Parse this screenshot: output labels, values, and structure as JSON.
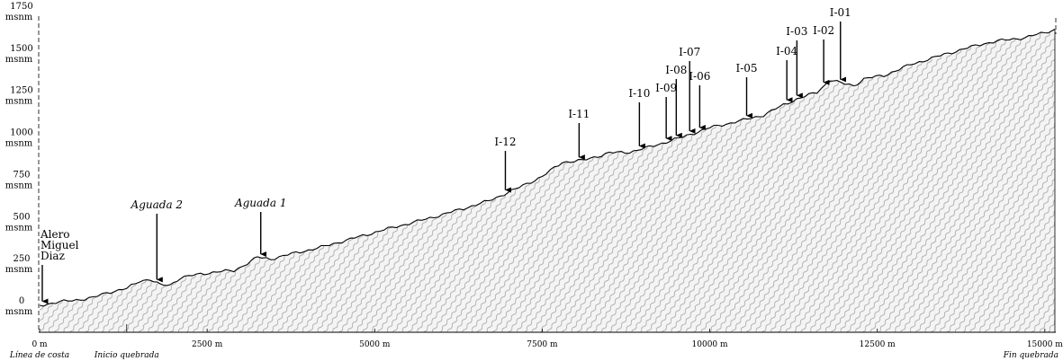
{
  "y_axis": {
    "unit": "msnm",
    "ticks": [
      {
        "value": 1750,
        "label": "1750"
      },
      {
        "value": 1500,
        "label": "1500"
      },
      {
        "value": 1250,
        "label": "1250"
      },
      {
        "value": 1000,
        "label": "1000"
      },
      {
        "value": 750,
        "label": "750"
      },
      {
        "value": 500,
        "label": "500"
      },
      {
        "value": 250,
        "label": "250"
      },
      {
        "value": 0,
        "label": "0"
      }
    ]
  },
  "x_axis": {
    "ticks": [
      {
        "value": 0,
        "label": "0 m"
      },
      {
        "value": 2500,
        "label": "2500 m"
      },
      {
        "value": 5000,
        "label": "5000 m"
      },
      {
        "value": 7500,
        "label": "7500 m"
      },
      {
        "value": 10000,
        "label": "10000 m"
      },
      {
        "value": 12500,
        "label": "12500 m"
      },
      {
        "value": 15000,
        "label": "15000 m"
      }
    ],
    "markers": [
      {
        "value": 0,
        "label": "Línea de costa"
      },
      {
        "value": 1300,
        "label": "Inicio quebrada"
      },
      {
        "value": 15150,
        "label": "Fin  quebrada"
      }
    ]
  },
  "profile": [
    [
      0,
      0
    ],
    [
      300,
      20
    ],
    [
      800,
      45
    ],
    [
      1000,
      75
    ],
    [
      1300,
      100
    ],
    [
      1500,
      145
    ],
    [
      1650,
      155
    ],
    [
      1800,
      120
    ],
    [
      1950,
      120
    ],
    [
      2100,
      165
    ],
    [
      2400,
      185
    ],
    [
      2650,
      200
    ],
    [
      2900,
      205
    ],
    [
      3100,
      250
    ],
    [
      3250,
      285
    ],
    [
      3450,
      275
    ],
    [
      3700,
      300
    ],
    [
      4200,
      345
    ],
    [
      4700,
      400
    ],
    [
      5200,
      455
    ],
    [
      5700,
      505
    ],
    [
      6200,
      560
    ],
    [
      6700,
      620
    ],
    [
      7100,
      690
    ],
    [
      7500,
      765
    ],
    [
      7800,
      850
    ],
    [
      8100,
      860
    ],
    [
      8500,
      905
    ],
    [
      8800,
      910
    ],
    [
      9100,
      940
    ],
    [
      9600,
      1000
    ],
    [
      10000,
      1055
    ],
    [
      10500,
      1100
    ],
    [
      10800,
      1130
    ],
    [
      11100,
      1190
    ],
    [
      11300,
      1225
    ],
    [
      11600,
      1265
    ],
    [
      11800,
      1340
    ],
    [
      11950,
      1320
    ],
    [
      12150,
      1305
    ],
    [
      12300,
      1345
    ],
    [
      12600,
      1365
    ],
    [
      13000,
      1430
    ],
    [
      13500,
      1490
    ],
    [
      13900,
      1535
    ],
    [
      14100,
      1555
    ],
    [
      14300,
      1570
    ],
    [
      14700,
      1590
    ],
    [
      15000,
      1620
    ],
    [
      15150,
      1640
    ]
  ],
  "sites": [
    {
      "id": "alero",
      "label_lines": [
        "Alero",
        "Miguel",
        "Diaz"
      ],
      "x": 40,
      "italic": false
    },
    {
      "id": "aguada2",
      "label_lines": [
        "Aguada 2"
      ],
      "x": 1750,
      "italic": true
    },
    {
      "id": "aguada1",
      "label_lines": [
        "Aguada 1"
      ],
      "x": 3300,
      "italic": true
    },
    {
      "id": "i12",
      "label_lines": [
        "I-12"
      ],
      "x": 6950,
      "italic": false
    },
    {
      "id": "i11",
      "label_lines": [
        "I-11"
      ],
      "x": 8050,
      "italic": false
    },
    {
      "id": "i10",
      "label_lines": [
        "I-10"
      ],
      "x": 8950,
      "italic": false
    },
    {
      "id": "i09",
      "label_lines": [
        "I-09"
      ],
      "x": 9350,
      "italic": false
    },
    {
      "id": "i08",
      "label_lines": [
        "I-08"
      ],
      "x": 9500,
      "italic": false
    },
    {
      "id": "i07",
      "label_lines": [
        "I-07"
      ],
      "x": 9700,
      "italic": false
    },
    {
      "id": "i06",
      "label_lines": [
        "I-06"
      ],
      "x": 9850,
      "italic": false
    },
    {
      "id": "i05",
      "label_lines": [
        "I-05"
      ],
      "x": 10550,
      "italic": false
    },
    {
      "id": "i04",
      "label_lines": [
        "I-04"
      ],
      "x": 11150,
      "italic": false
    },
    {
      "id": "i03",
      "label_lines": [
        "I-03"
      ],
      "x": 11300,
      "italic": false
    },
    {
      "id": "i02",
      "label_lines": [
        "I-02"
      ],
      "x": 11700,
      "italic": false
    },
    {
      "id": "i01",
      "label_lines": [
        "I-01"
      ],
      "x": 11950,
      "italic": false
    }
  ],
  "colors": {
    "fill": "#f4f4f4",
    "line": "#000000",
    "hatch": "#9a9a9a"
  }
}
